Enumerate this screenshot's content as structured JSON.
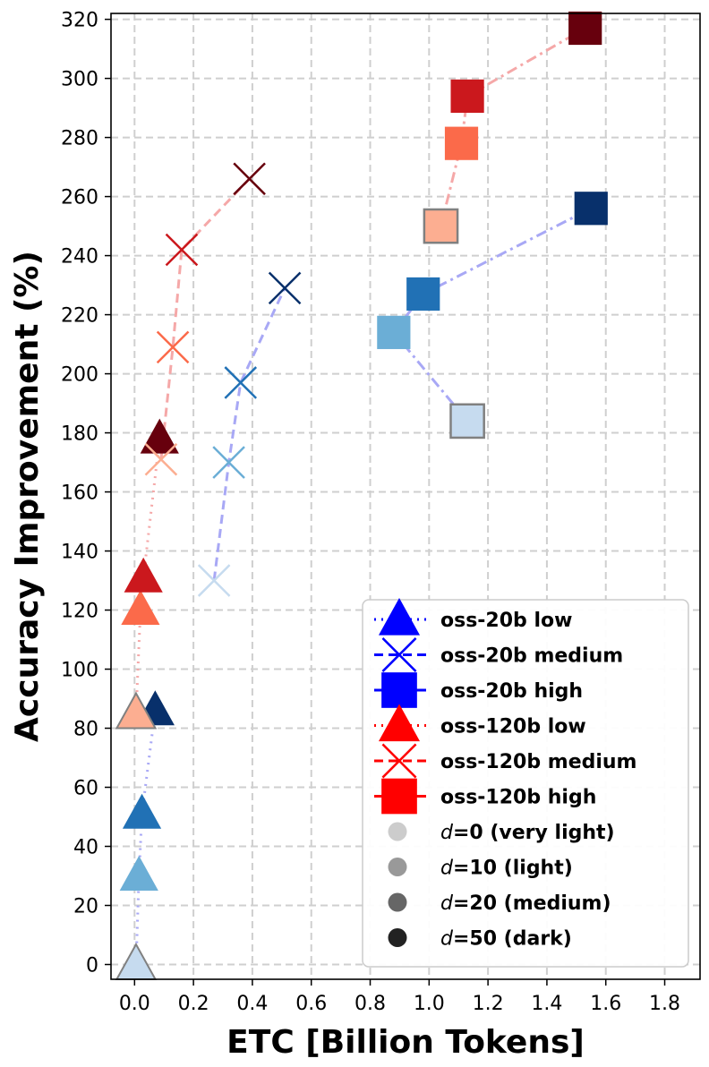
{
  "chart_data": {
    "type": "scatter",
    "xlabel": "ETC [Billion Tokens]",
    "ylabel": "Accuracy Improvement (%)",
    "xlim": [
      -0.08,
      1.92
    ],
    "ylim": [
      -5,
      322
    ],
    "xticks": [
      "0.0",
      "0.2",
      "0.4",
      "0.6",
      "0.8",
      "1.0",
      "1.2",
      "1.4",
      "1.6",
      "1.8"
    ],
    "yticks": [
      "0",
      "20",
      "40",
      "60",
      "80",
      "100",
      "120",
      "140",
      "160",
      "180",
      "200",
      "220",
      "240",
      "260",
      "280",
      "300",
      "320"
    ],
    "grid": true,
    "legend_position": "bottom-right",
    "series": [
      {
        "name": "oss-20b low",
        "marker": "triangle",
        "linestyle": "dotted",
        "line_color": "#a8a8f5",
        "points": [
          {
            "x": 0.005,
            "y": 0,
            "color": "#c6dbef"
          },
          {
            "x": 0.015,
            "y": 30,
            "color": "#6baed6"
          },
          {
            "x": 0.025,
            "y": 51,
            "color": "#2171b5"
          },
          {
            "x": 0.07,
            "y": 86,
            "color": "#08306b"
          }
        ]
      },
      {
        "name": "oss-20b medium",
        "marker": "x",
        "linestyle": "dashed",
        "line_color": "#a8a8f5",
        "points": [
          {
            "x": 0.27,
            "y": 130,
            "color": "#c6dbef"
          },
          {
            "x": 0.32,
            "y": 170,
            "color": "#6baed6"
          },
          {
            "x": 0.36,
            "y": 197,
            "color": "#2171b5"
          },
          {
            "x": 0.51,
            "y": 229,
            "color": "#08306b"
          }
        ]
      },
      {
        "name": "oss-20b high",
        "marker": "square",
        "linestyle": "dashdot",
        "line_color": "#a8a8f5",
        "points": [
          {
            "x": 1.13,
            "y": 184,
            "color": "#c6dbef"
          },
          {
            "x": 0.88,
            "y": 214,
            "color": "#6baed6"
          },
          {
            "x": 0.98,
            "y": 227,
            "color": "#2171b5"
          },
          {
            "x": 1.55,
            "y": 256,
            "color": "#08306b"
          }
        ]
      },
      {
        "name": "oss-120b low",
        "marker": "triangle",
        "linestyle": "dotted",
        "line_color": "#f5a8a8",
        "points": [
          {
            "x": 0.005,
            "y": 85,
            "color": "#fcae91"
          },
          {
            "x": 0.02,
            "y": 120,
            "color": "#fb6a4a"
          },
          {
            "x": 0.03,
            "y": 131,
            "color": "#cb181d"
          },
          {
            "x": 0.085,
            "y": 178,
            "color": "#67000d"
          }
        ]
      },
      {
        "name": "oss-120b medium",
        "marker": "x",
        "linestyle": "dashed",
        "line_color": "#f5a8a8",
        "points": [
          {
            "x": 0.09,
            "y": 171,
            "color": "#fcae91"
          },
          {
            "x": 0.13,
            "y": 209,
            "color": "#fb6a4a"
          },
          {
            "x": 0.16,
            "y": 242,
            "color": "#cb181d"
          },
          {
            "x": 0.39,
            "y": 266,
            "color": "#67000d"
          }
        ]
      },
      {
        "name": "oss-120b high",
        "marker": "square",
        "linestyle": "dashdot",
        "line_color": "#f5a8a8",
        "points": [
          {
            "x": 1.04,
            "y": 250,
            "color": "#fcae91"
          },
          {
            "x": 1.11,
            "y": 278,
            "color": "#fb6a4a"
          },
          {
            "x": 1.13,
            "y": 294,
            "color": "#cb181d"
          },
          {
            "x": 1.53,
            "y": 317,
            "color": "#67000d"
          }
        ]
      }
    ],
    "legend": {
      "series_entries": [
        {
          "label": "oss-20b low",
          "marker": "triangle",
          "color": "#0000ff",
          "linestyle": "dotted"
        },
        {
          "label": "oss-20b medium",
          "marker": "x",
          "color": "#0000ff",
          "linestyle": "dashed"
        },
        {
          "label": "oss-20b high",
          "marker": "square",
          "color": "#0000ff",
          "linestyle": "solid"
        },
        {
          "label": "oss-120b low",
          "marker": "triangle",
          "color": "#ff0000",
          "linestyle": "dotted"
        },
        {
          "label": "oss-120b medium",
          "marker": "x",
          "color": "#ff0000",
          "linestyle": "dashed"
        },
        {
          "label": "oss-120b high",
          "marker": "square",
          "color": "#ff0000",
          "linestyle": "solid"
        }
      ],
      "shade_entries": [
        {
          "var": "d",
          "rest": "=0 (very light)",
          "color": "#cccccc"
        },
        {
          "var": "d",
          "rest": "=10 (light)",
          "color": "#999999"
        },
        {
          "var": "d",
          "rest": "=20 (medium)",
          "color": "#666666"
        },
        {
          "var": "d",
          "rest": "=50 (dark)",
          "color": "#222222"
        }
      ]
    }
  }
}
